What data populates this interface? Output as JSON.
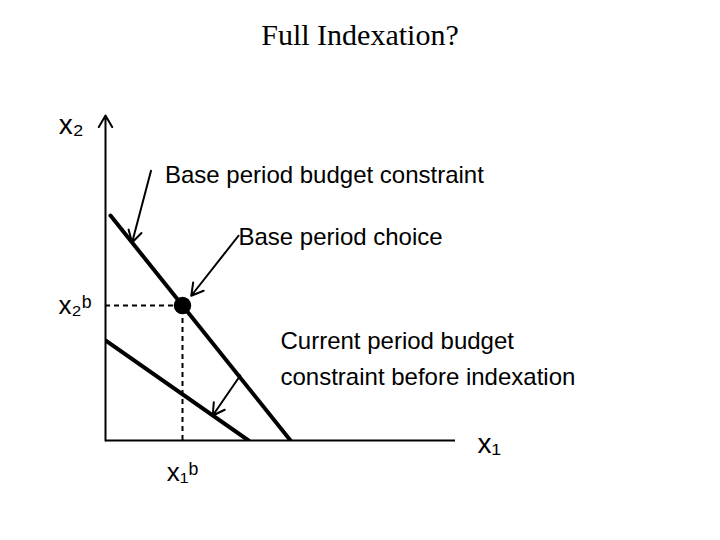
{
  "chart_data": {
    "type": "line",
    "title": "Full Indexation?",
    "x_label": "x₁",
    "y_label": "x₂",
    "xlim": [
      0,
      350
    ],
    "ylim": [
      0,
      325
    ],
    "xticks": [
      {
        "value": 77,
        "label": "x₁ᵇ"
      }
    ],
    "yticks": [
      {
        "value": 135,
        "label": "x₂ᵇ"
      }
    ],
    "grid": false,
    "series": [
      {
        "name": "Base period budget constraint",
        "color": "#000000",
        "x": [
          5,
          185
        ],
        "values": [
          225,
          0
        ]
      },
      {
        "name": "Current period budget constraint before indexation",
        "color": "#000000",
        "x": [
          0,
          143
        ],
        "values": [
          100,
          0
        ]
      }
    ],
    "points": [
      {
        "name": "Base period choice",
        "x": 77,
        "y": 135,
        "color": "#000000"
      }
    ]
  }
}
